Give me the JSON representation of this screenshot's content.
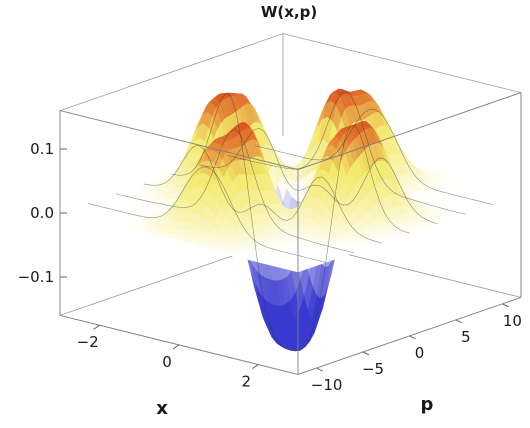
{
  "chart_data": {
    "type": "surface3d",
    "title": "W(x,p)",
    "xlabel": "x",
    "ylabel": "p",
    "zlabel": "",
    "xlim": [
      -3,
      3
    ],
    "ylim": [
      -12,
      12
    ],
    "zlim": [
      -0.16,
      0.16
    ],
    "x_ticks": [
      {
        "value": -2,
        "label": "−2"
      },
      {
        "value": 0,
        "label": "0"
      },
      {
        "value": 2,
        "label": "2"
      }
    ],
    "y_ticks": [
      {
        "value": -10,
        "label": "−10"
      },
      {
        "value": -5,
        "label": "−5"
      },
      {
        "value": 0,
        "label": "0"
      },
      {
        "value": 5,
        "label": "5"
      },
      {
        "value": 10,
        "label": "10"
      }
    ],
    "z_ticks": [
      {
        "value": 0.1,
        "label": "0.1"
      },
      {
        "value": 0.0,
        "label": "0.0"
      },
      {
        "value": -0.1,
        "label": "−0.1"
      }
    ],
    "peaks": [
      {
        "x": -1.6,
        "p": -1.5,
        "w": 0.13
      },
      {
        "x": -1.45,
        "p": 1.5,
        "w": 0.13
      },
      {
        "x": 1.45,
        "p": -1.5,
        "w": 0.13
      },
      {
        "x": 1.6,
        "p": 1.5,
        "w": 0.13
      },
      {
        "x": -0.3,
        "p": -8.0,
        "w": 0.08
      },
      {
        "x": 0.3,
        "p": -8.0,
        "w": 0.08
      },
      {
        "x": -0.3,
        "p": 8.0,
        "w": 0.08
      },
      {
        "x": 0.3,
        "p": 8.0,
        "w": 0.08
      },
      {
        "x": 0.0,
        "p": -4.5,
        "w": 0.15
      },
      {
        "x": 0.0,
        "p": 4.5,
        "w": 0.15
      },
      {
        "x": -0.6,
        "p": 0.0,
        "w": -0.15
      },
      {
        "x": 0.6,
        "p": 0.0,
        "w": -0.15
      },
      {
        "x": 0.0,
        "p": -1.5,
        "w": -0.1
      },
      {
        "x": 0.0,
        "p": 1.5,
        "w": -0.1
      }
    ],
    "colors": {
      "positive_low": "#f3e96a",
      "positive_high": "#d83a10",
      "zero": "#ffffff",
      "negative": "#3a3ad0"
    }
  }
}
